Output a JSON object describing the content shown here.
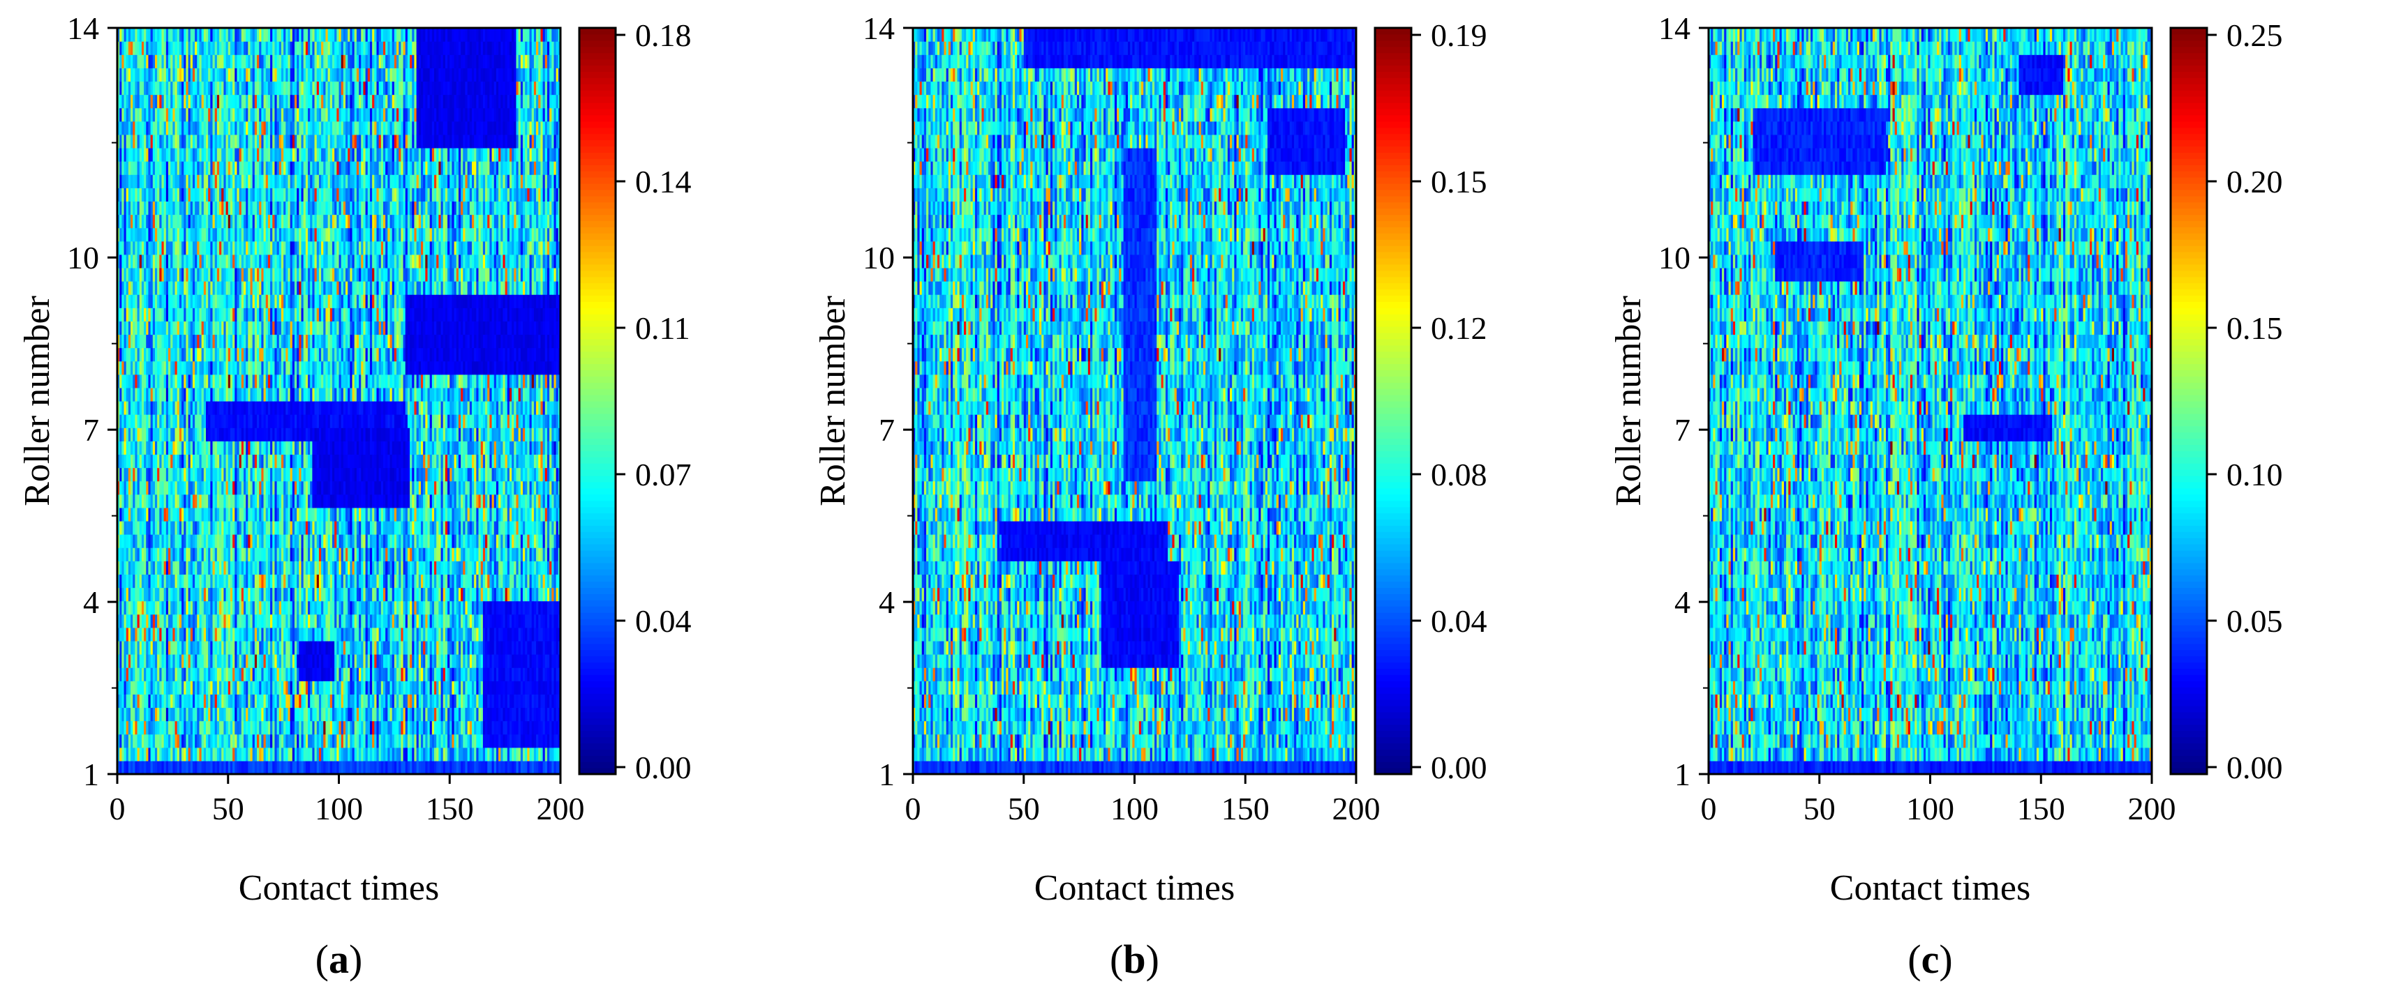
{
  "chart_data": [
    {
      "type": "heatmap",
      "panel_label": "a",
      "xlabel": "Contact times",
      "ylabel": "Roller number",
      "xlim": [
        0,
        200
      ],
      "ylim": [
        1,
        14
      ],
      "x_ticks": [
        "0",
        "50",
        "100",
        "150",
        "200"
      ],
      "y_ticks": [
        "1",
        "4",
        "7",
        "10",
        "14"
      ],
      "colorbar": {
        "range": [
          0.0,
          0.18
        ],
        "ticks": [
          "0.00",
          "0.04",
          "0.07",
          "0.11",
          "0.14",
          "0.18"
        ]
      },
      "colormap": "jet",
      "low_value_regions": [
        {
          "x": [
            135,
            180
          ],
          "y": [
            12,
            14
          ],
          "value": 0.015
        },
        {
          "x": [
            130,
            200
          ],
          "y": [
            8,
            9.3
          ],
          "value": 0.015
        },
        {
          "x": [
            40,
            130
          ],
          "y": [
            6.8,
            7.4
          ],
          "value": 0.018
        },
        {
          "x": [
            88,
            132
          ],
          "y": [
            5.6,
            7
          ],
          "value": 0.015
        },
        {
          "x": [
            82,
            98
          ],
          "y": [
            2.7,
            3.4
          ],
          "value": 0.015
        },
        {
          "x": [
            165,
            200
          ],
          "y": [
            1.5,
            4
          ],
          "value": 0.018
        },
        {
          "x": [
            0,
            200
          ],
          "y": [
            1,
            1.3
          ],
          "value": 0.025
        }
      ]
    },
    {
      "type": "heatmap",
      "panel_label": "b",
      "xlabel": "Contact times",
      "ylabel": "Roller number",
      "xlim": [
        0,
        200
      ],
      "ylim": [
        1,
        14
      ],
      "x_ticks": [
        "0",
        "50",
        "100",
        "150",
        "200"
      ],
      "y_ticks": [
        "1",
        "4",
        "7",
        "10",
        "14"
      ],
      "colorbar": {
        "range": [
          0.0,
          0.19
        ],
        "ticks": [
          "0.00",
          "0.04",
          "0.08",
          "0.12",
          "0.15",
          "0.19"
        ]
      },
      "colormap": "jet",
      "low_value_regions": [
        {
          "x": [
            50,
            200
          ],
          "y": [
            13.3,
            14
          ],
          "value": 0.02
        },
        {
          "x": [
            40,
            115
          ],
          "y": [
            4.8,
            5.4
          ],
          "value": 0.018
        },
        {
          "x": [
            85,
            120
          ],
          "y": [
            2.8,
            4.8
          ],
          "value": 0.018
        },
        {
          "x": [
            95,
            110
          ],
          "y": [
            6,
            12
          ],
          "value": 0.025
        },
        {
          "x": [
            160,
            195
          ],
          "y": [
            11.5,
            12.5
          ],
          "value": 0.02
        },
        {
          "x": [
            0,
            200
          ],
          "y": [
            1,
            1.3
          ],
          "value": 0.025
        }
      ]
    },
    {
      "type": "heatmap",
      "panel_label": "c",
      "xlabel": "Contact times",
      "ylabel": "Roller number",
      "xlim": [
        0,
        200
      ],
      "ylim": [
        1,
        14
      ],
      "x_ticks": [
        "0",
        "50",
        "100",
        "150",
        "200"
      ],
      "y_ticks": [
        "1",
        "4",
        "7",
        "10",
        "14"
      ],
      "colorbar": {
        "range": [
          0.0,
          0.25
        ],
        "ticks": [
          "0.00",
          "0.05",
          "0.10",
          "0.15",
          "0.20",
          "0.25"
        ]
      },
      "colormap": "jet",
      "low_value_regions": [
        {
          "x": [
            115,
            155
          ],
          "y": [
            6.7,
            7.3
          ],
          "value": 0.025
        },
        {
          "x": [
            20,
            80
          ],
          "y": [
            11.5,
            12.5
          ],
          "value": 0.03
        },
        {
          "x": [
            30,
            70
          ],
          "y": [
            9.6,
            10.4
          ],
          "value": 0.03
        },
        {
          "x": [
            140,
            160
          ],
          "y": [
            12.8,
            13.6
          ],
          "value": 0.025
        },
        {
          "x": [
            0,
            200
          ],
          "y": [
            1,
            1.3
          ],
          "value": 0.03
        }
      ]
    }
  ]
}
